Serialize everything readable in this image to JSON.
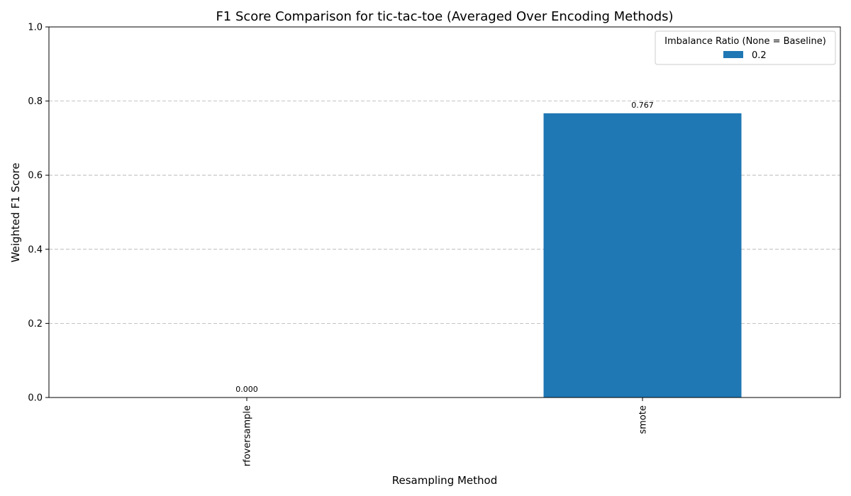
{
  "chart_data": {
    "type": "bar",
    "title": "F1 Score Comparison for tic-tac-toe (Averaged Over Encoding Methods)",
    "xlabel": "Resampling Method",
    "ylabel": "Weighted F1 Score",
    "categories": [
      "rfoversample",
      "smote"
    ],
    "series": [
      {
        "name": "0.2",
        "values": [
          0.0,
          0.767
        ],
        "labels": [
          "0.000",
          "0.767"
        ]
      }
    ],
    "ylim": [
      0,
      1.0
    ],
    "yticks": [
      "0.0",
      "0.2",
      "0.4",
      "0.6",
      "0.8",
      "1.0"
    ],
    "grid": "y",
    "legend": {
      "title": "Imbalance Ratio (None = Baseline)",
      "placement": "top-right"
    },
    "colors": {
      "bar": "#1f77b4",
      "grid": "#b0b0b0",
      "axis": "#000000"
    }
  }
}
